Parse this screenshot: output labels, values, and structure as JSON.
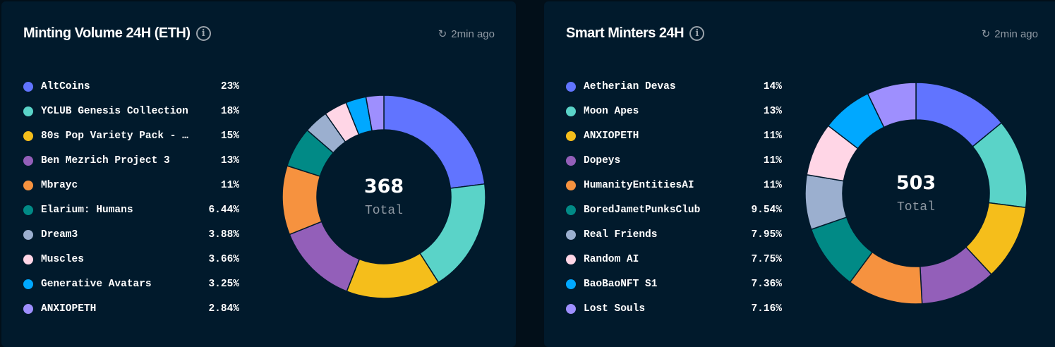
{
  "panels": [
    {
      "title": "Minting Volume 24H (ETH)",
      "updated": "2min ago",
      "total": "368",
      "total_label": "Total",
      "items": [
        {
          "label": "AltCoins",
          "pct": "23%",
          "value": 23,
          "color": "#6174ff"
        },
        {
          "label": "YCLUB Genesis Collection",
          "pct": "18%",
          "value": 18,
          "color": "#5ad3c8"
        },
        {
          "label": "80s Pop Variety Pack - …",
          "pct": "15%",
          "value": 15,
          "color": "#f5be1b"
        },
        {
          "label": "Ben Mezrich Project 3",
          "pct": "13%",
          "value": 13,
          "color": "#935fb9"
        },
        {
          "label": "Mbrayc",
          "pct": "11%",
          "value": 11,
          "color": "#f6923f"
        },
        {
          "label": "Elarium: Humans",
          "pct": "6.44%",
          "value": 6.44,
          "color": "#018a86"
        },
        {
          "label": "Dream3",
          "pct": "3.88%",
          "value": 3.88,
          "color": "#9bafcf"
        },
        {
          "label": "Muscles",
          "pct": "3.66%",
          "value": 3.66,
          "color": "#ffd6e6"
        },
        {
          "label": "Generative Avatars",
          "pct": "3.25%",
          "value": 3.25,
          "color": "#00a8ff"
        },
        {
          "label": "ANXIOPETH",
          "pct": "2.84%",
          "value": 2.84,
          "color": "#9e8ffe"
        }
      ]
    },
    {
      "title": "Smart Minters 24H",
      "updated": "2min ago",
      "total": "503",
      "total_label": "Total",
      "items": [
        {
          "label": "Aetherian Devas",
          "pct": "14%",
          "value": 14,
          "color": "#6174ff"
        },
        {
          "label": "Moon Apes",
          "pct": "13%",
          "value": 13,
          "color": "#5ad3c8"
        },
        {
          "label": "ANXIOPETH",
          "pct": "11%",
          "value": 11,
          "color": "#f5be1b"
        },
        {
          "label": "Dopeys",
          "pct": "11%",
          "value": 11,
          "color": "#935fb9"
        },
        {
          "label": "HumanityEntitiesAI",
          "pct": "11%",
          "value": 11,
          "color": "#f6923f"
        },
        {
          "label": "BoredJametPunksClub",
          "pct": "9.54%",
          "value": 9.54,
          "color": "#018a86"
        },
        {
          "label": "Real Friends",
          "pct": "7.95%",
          "value": 7.95,
          "color": "#9bafcf"
        },
        {
          "label": "Random AI",
          "pct": "7.75%",
          "value": 7.75,
          "color": "#ffd6e6"
        },
        {
          "label": "BaoBaoNFT S1",
          "pct": "7.36%",
          "value": 7.36,
          "color": "#00a8ff"
        },
        {
          "label": "Lost Souls",
          "pct": "7.16%",
          "value": 7.16,
          "color": "#9e8ffe"
        }
      ]
    }
  ],
  "chart_data": [
    {
      "type": "pie",
      "variant": "donut",
      "title": "Minting Volume 24H (ETH)",
      "center_value": 368,
      "categories": [
        "AltCoins",
        "YCLUB Genesis Collection",
        "80s Pop Variety Pack - …",
        "Ben Mezrich Project 3",
        "Mbrayc",
        "Elarium: Humans",
        "Dream3",
        "Muscles",
        "Generative Avatars",
        "ANXIOPETH"
      ],
      "values": [
        23,
        18,
        15,
        13,
        11,
        6.44,
        3.88,
        3.66,
        3.25,
        2.84
      ],
      "legend": "left"
    },
    {
      "type": "pie",
      "variant": "donut",
      "title": "Smart Minters 24H",
      "center_value": 503,
      "categories": [
        "Aetherian Devas",
        "Moon Apes",
        "ANXIOPETH",
        "Dopeys",
        "HumanityEntitiesAI",
        "BoredJametPunksClub",
        "Real Friends",
        "Random AI",
        "BaoBaoNFT S1",
        "Lost Souls"
      ],
      "values": [
        14,
        13,
        11,
        11,
        11,
        9.54,
        7.95,
        7.75,
        7.36,
        7.16
      ],
      "legend": "left"
    }
  ]
}
